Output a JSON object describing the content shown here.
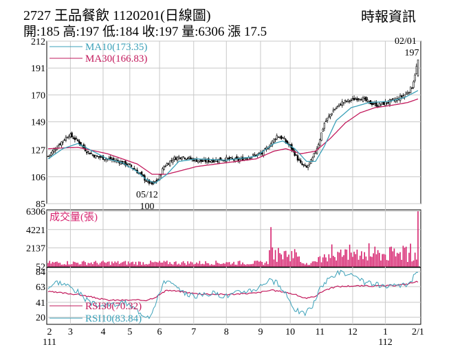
{
  "header": {
    "title": "2727  王品餐飲 1120201(日線圖)",
    "quote": "開:185 高:197 低:184 收:197 量:6306 漲 17.5",
    "source": "時報資訊"
  },
  "colors": {
    "ma10": "#3aa0b8",
    "ma30": "#c2185b",
    "volume": "#d6226e",
    "rsi30": "#c2185b",
    "rsi10": "#3aa0b8",
    "candle": "#000000"
  },
  "chart_data": {
    "type": "line",
    "price": {
      "y_ticks": [
        212,
        191,
        170,
        149,
        127,
        106,
        85
      ],
      "ylim": [
        85,
        212
      ],
      "legend": [
        {
          "label": "MA10(173.35)"
        },
        {
          "label": "MA30(166.83)"
        }
      ],
      "annotations": [
        {
          "date": "02/01",
          "value": "197"
        },
        {
          "date": "05/12",
          "value": "100"
        }
      ],
      "close_anchors": [
        [
          0,
          122
        ],
        [
          8,
          132
        ],
        [
          14,
          139
        ],
        [
          20,
          134
        ],
        [
          26,
          126
        ],
        [
          32,
          122
        ],
        [
          40,
          120
        ],
        [
          48,
          118
        ],
        [
          56,
          114
        ],
        [
          62,
          108
        ],
        [
          66,
          103
        ],
        [
          70,
          100
        ],
        [
          74,
          104
        ],
        [
          78,
          114
        ],
        [
          84,
          120
        ],
        [
          90,
          122
        ],
        [
          96,
          120
        ],
        [
          104,
          118
        ],
        [
          112,
          119
        ],
        [
          120,
          120
        ],
        [
          128,
          119
        ],
        [
          136,
          122
        ],
        [
          144,
          124
        ],
        [
          150,
          132
        ],
        [
          154,
          138
        ],
        [
          158,
          136
        ],
        [
          164,
          128
        ],
        [
          170,
          116
        ],
        [
          174,
          113
        ],
        [
          178,
          120
        ],
        [
          182,
          132
        ],
        [
          186,
          148
        ],
        [
          192,
          158
        ],
        [
          198,
          164
        ],
        [
          204,
          166
        ],
        [
          210,
          168
        ],
        [
          216,
          164
        ],
        [
          222,
          162
        ],
        [
          228,
          164
        ],
        [
          234,
          166
        ],
        [
          240,
          170
        ],
        [
          245,
          176
        ],
        [
          249,
          197
        ]
      ],
      "ma10_anchors": [
        [
          0,
          120
        ],
        [
          10,
          128
        ],
        [
          20,
          132
        ],
        [
          30,
          126
        ],
        [
          40,
          120
        ],
        [
          50,
          117
        ],
        [
          60,
          110
        ],
        [
          66,
          104
        ],
        [
          72,
          101
        ],
        [
          80,
          108
        ],
        [
          88,
          118
        ],
        [
          100,
          120
        ],
        [
          120,
          119
        ],
        [
          140,
          122
        ],
        [
          152,
          132
        ],
        [
          158,
          134
        ],
        [
          166,
          128
        ],
        [
          174,
          118
        ],
        [
          180,
          118
        ],
        [
          186,
          130
        ],
        [
          194,
          150
        ],
        [
          204,
          160
        ],
        [
          216,
          164
        ],
        [
          230,
          165
        ],
        [
          240,
          168
        ],
        [
          249,
          173.35
        ]
      ],
      "ma30_anchors": [
        [
          0,
          128
        ],
        [
          20,
          129
        ],
        [
          40,
          124
        ],
        [
          60,
          116
        ],
        [
          70,
          108
        ],
        [
          80,
          108
        ],
        [
          100,
          114
        ],
        [
          120,
          117
        ],
        [
          140,
          120
        ],
        [
          152,
          126
        ],
        [
          160,
          128
        ],
        [
          170,
          124
        ],
        [
          180,
          126
        ],
        [
          190,
          136
        ],
        [
          200,
          148
        ],
        [
          210,
          156
        ],
        [
          220,
          160
        ],
        [
          232,
          162
        ],
        [
          242,
          164
        ],
        [
          249,
          166.83
        ]
      ]
    },
    "volume": {
      "label": "成交量(張)",
      "y_ticks": [
        6306,
        4221,
        2137,
        52
      ],
      "ylim": [
        0,
        6306
      ],
      "last_value": 6306
    },
    "rsi": {
      "y_ticks": [
        84,
        63,
        41,
        20
      ],
      "ylim": [
        10,
        90
      ],
      "legend": [
        {
          "label": "RSI30(70.32)"
        },
        {
          "label": "RSI10(83.84)"
        }
      ],
      "rsi30_anchors": [
        [
          0,
          56
        ],
        [
          10,
          54
        ],
        [
          20,
          52
        ],
        [
          30,
          48
        ],
        [
          40,
          44
        ],
        [
          50,
          44
        ],
        [
          60,
          44
        ],
        [
          66,
          44
        ],
        [
          72,
          48
        ],
        [
          80,
          58
        ],
        [
          90,
          56
        ],
        [
          100,
          53
        ],
        [
          120,
          52
        ],
        [
          140,
          54
        ],
        [
          150,
          58
        ],
        [
          158,
          56
        ],
        [
          166,
          52
        ],
        [
          174,
          46
        ],
        [
          180,
          50
        ],
        [
          186,
          58
        ],
        [
          194,
          63
        ],
        [
          204,
          64
        ],
        [
          216,
          64
        ],
        [
          228,
          64
        ],
        [
          240,
          66
        ],
        [
          249,
          70.32
        ]
      ],
      "rsi10_anchors": [
        [
          0,
          62
        ],
        [
          6,
          70
        ],
        [
          12,
          66
        ],
        [
          20,
          56
        ],
        [
          28,
          40
        ],
        [
          36,
          36
        ],
        [
          44,
          38
        ],
        [
          52,
          40
        ],
        [
          60,
          30
        ],
        [
          64,
          24
        ],
        [
          68,
          22
        ],
        [
          72,
          36
        ],
        [
          78,
          72
        ],
        [
          84,
          66
        ],
        [
          90,
          54
        ],
        [
          100,
          50
        ],
        [
          110,
          54
        ],
        [
          120,
          50
        ],
        [
          130,
          56
        ],
        [
          140,
          60
        ],
        [
          148,
          72
        ],
        [
          154,
          68
        ],
        [
          160,
          52
        ],
        [
          166,
          32
        ],
        [
          172,
          24
        ],
        [
          178,
          36
        ],
        [
          184,
          64
        ],
        [
          190,
          76
        ],
        [
          196,
          84
        ],
        [
          204,
          78
        ],
        [
          212,
          70
        ],
        [
          220,
          66
        ],
        [
          228,
          62
        ],
        [
          236,
          64
        ],
        [
          242,
          66
        ],
        [
          249,
          83.84
        ]
      ]
    },
    "x_ticks": [
      {
        "label": "2",
        "sub": "111",
        "day": 0
      },
      {
        "label": "3",
        "day": 15
      },
      {
        "label": "4",
        "day": 37
      },
      {
        "label": "5",
        "day": 55
      },
      {
        "label": "6",
        "day": 75
      },
      {
        "label": "7",
        "day": 98
      },
      {
        "label": "8",
        "day": 120
      },
      {
        "label": "9",
        "day": 143
      },
      {
        "label": "10",
        "day": 163
      },
      {
        "label": "11",
        "day": 183
      },
      {
        "label": "12",
        "day": 205
      },
      {
        "label": "1",
        "sub": "112",
        "day": 227
      },
      {
        "label": "2/1",
        "day": 249
      }
    ],
    "n_days": 250,
    "grid": true
  }
}
